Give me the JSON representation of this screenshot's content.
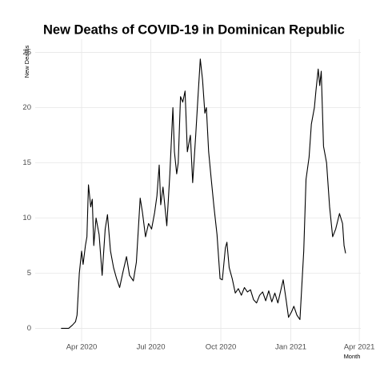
{
  "chart_data": {
    "type": "line",
    "title": "New Deaths of COVID-19 in Dominican Republic",
    "x_label": "Month",
    "y_label": "New Deaths",
    "x": [
      "2020-03-05",
      "2020-03-15",
      "2020-03-20",
      "2020-03-24",
      "2020-03-26",
      "2020-03-29",
      "2020-04-01",
      "2020-04-03",
      "2020-04-06",
      "2020-04-08",
      "2020-04-10",
      "2020-04-13",
      "2020-04-15",
      "2020-04-17",
      "2020-04-20",
      "2020-04-24",
      "2020-04-28",
      "2020-05-02",
      "2020-05-05",
      "2020-05-09",
      "2020-05-13",
      "2020-05-17",
      "2020-05-21",
      "2020-05-25",
      "2020-05-30",
      "2020-06-03",
      "2020-06-08",
      "2020-06-12",
      "2020-06-17",
      "2020-06-20",
      "2020-06-24",
      "2020-06-28",
      "2020-07-02",
      "2020-07-06",
      "2020-07-09",
      "2020-07-12",
      "2020-07-14",
      "2020-07-17",
      "2020-07-22",
      "2020-07-26",
      "2020-07-30",
      "2020-08-01",
      "2020-08-04",
      "2020-08-06",
      "2020-08-09",
      "2020-08-12",
      "2020-08-15",
      "2020-08-18",
      "2020-08-22",
      "2020-08-25",
      "2020-08-29",
      "2020-09-01",
      "2020-09-04",
      "2020-09-07",
      "2020-09-10",
      "2020-09-12",
      "2020-09-15",
      "2020-09-18",
      "2020-09-22",
      "2020-09-26",
      "2020-09-30",
      "2020-10-03",
      "2020-10-07",
      "2020-10-09",
      "2020-10-12",
      "2020-10-16",
      "2020-10-20",
      "2020-10-24",
      "2020-10-28",
      "2020-11-01",
      "2020-11-05",
      "2020-11-09",
      "2020-11-13",
      "2020-11-17",
      "2020-11-21",
      "2020-11-25",
      "2020-11-29",
      "2020-12-03",
      "2020-12-07",
      "2020-12-11",
      "2020-12-15",
      "2020-12-19",
      "2020-12-22",
      "2020-12-26",
      "2020-12-29",
      "2021-01-02",
      "2021-01-05",
      "2021-01-09",
      "2021-01-13",
      "2021-01-18",
      "2021-01-21",
      "2021-01-25",
      "2021-01-28",
      "2021-02-01",
      "2021-02-03",
      "2021-02-06",
      "2021-02-08",
      "2021-02-10",
      "2021-02-13",
      "2021-02-17",
      "2021-02-21",
      "2021-02-25",
      "2021-03-01",
      "2021-03-06",
      "2021-03-10",
      "2021-03-12",
      "2021-03-14"
    ],
    "series": [
      {
        "name": "New Deaths",
        "color": "#000000",
        "values": [
          0,
          0,
          0.3,
          0.6,
          1.2,
          5,
          7,
          5.8,
          7.5,
          8.3,
          13,
          11,
          11.7,
          7.5,
          10,
          8.5,
          4.8,
          9,
          10.3,
          7,
          5.5,
          4.5,
          3.7,
          5,
          6.5,
          4.8,
          4.3,
          6,
          11.8,
          10.5,
          8.3,
          9.5,
          9,
          10.5,
          12,
          14.8,
          11.2,
          12.8,
          9.3,
          14,
          20,
          16,
          14,
          15,
          21,
          20.5,
          21.5,
          16,
          17.5,
          13.2,
          17.5,
          21,
          24.4,
          22.5,
          19.5,
          20,
          16,
          13.8,
          11,
          8.5,
          4.5,
          4.4,
          7.3,
          7.8,
          5.5,
          4.5,
          3.2,
          3.6,
          3.0,
          3.7,
          3.3,
          3.5,
          2.6,
          2.3,
          3.0,
          3.3,
          2.5,
          3.4,
          2.4,
          3.2,
          2.3,
          3.5,
          4.4,
          2.5,
          1.0,
          1.5,
          2.0,
          1.2,
          0.8,
          7,
          13.5,
          15.5,
          18.5,
          20,
          21.5,
          23.5,
          22,
          23.3,
          16.5,
          15,
          11,
          8.3,
          9,
          10.4,
          9.5,
          7.5,
          6.8
        ]
      }
    ],
    "xlim": [
      "2020-01-31",
      "2021-04-03"
    ],
    "xticks": [
      {
        "value": "2020-04-01",
        "label": "Apr 2020"
      },
      {
        "value": "2020-07-01",
        "label": "Jul 2020"
      },
      {
        "value": "2020-10-01",
        "label": "Oct 2020"
      },
      {
        "value": "2021-01-01",
        "label": "Jan 2021"
      },
      {
        "value": "2021-04-01",
        "label": "Apr 2021"
      }
    ],
    "ylim": [
      -1.2,
      26.2
    ],
    "yticks": [
      0,
      5,
      10,
      15,
      20,
      25
    ],
    "grid": true
  }
}
